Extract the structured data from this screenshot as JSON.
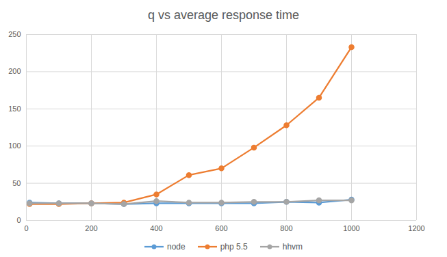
{
  "chart_data": {
    "type": "line",
    "title": "q vs average response time",
    "x": [
      10,
      100,
      200,
      300,
      400,
      500,
      600,
      700,
      800,
      900,
      1000
    ],
    "series": [
      {
        "name": "node",
        "color": "#5b9bd5",
        "marker": "circle",
        "values": [
          24,
          23,
          23,
          22,
          23,
          23,
          23,
          23,
          25,
          24,
          28
        ]
      },
      {
        "name": "php 5.5",
        "color": "#ed7d31",
        "marker": "circle",
        "values": [
          22,
          22,
          23,
          24,
          35,
          61,
          70,
          98,
          128,
          165,
          233
        ]
      },
      {
        "name": "hhvm",
        "color": "#a5a5a5",
        "marker": "circle",
        "values": [
          23,
          23,
          23,
          22,
          26,
          24,
          24,
          25,
          25,
          27,
          27
        ]
      }
    ],
    "xlim": [
      0,
      1200
    ],
    "xticks": [
      0,
      200,
      400,
      600,
      800,
      1000,
      1200
    ],
    "ylim": [
      0,
      250
    ],
    "yticks": [
      0,
      50,
      100,
      150,
      200,
      250
    ],
    "grid": true,
    "legend": "bottom"
  }
}
